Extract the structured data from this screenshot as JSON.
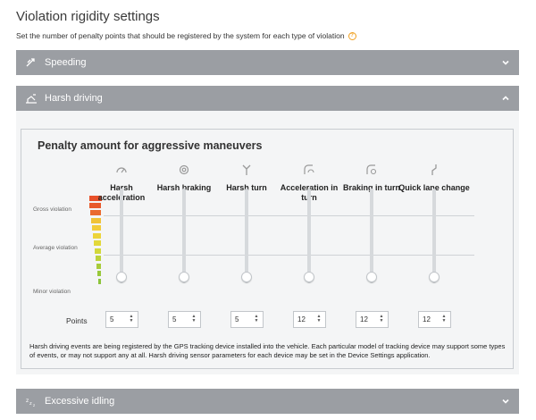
{
  "page": {
    "title": "Violation rigidity settings",
    "subtitle": "Set the number of penalty points that should be registered by the system for each type of violation"
  },
  "colors": {
    "header_bg": "#9b9ea3",
    "panel_bg": "#f4f5f6",
    "help": "#f0a020"
  },
  "sections": [
    {
      "label": "Speeding",
      "icon": "speed-icon",
      "expanded": false
    },
    {
      "label": "Harsh driving",
      "icon": "harsh-driving-icon",
      "expanded": true
    },
    {
      "label": "Excessive idling",
      "icon": "idling-icon",
      "expanded": false
    }
  ],
  "harsh": {
    "legend": "Penalty amount for aggressive maneuvers",
    "scale": {
      "gross": "Gross violation",
      "average": "Average violation",
      "minor": "Minor violation"
    },
    "points_label": "Points",
    "columns": [
      {
        "title": "Harsh acceleration",
        "points": "5",
        "icon": "acceleration-icon"
      },
      {
        "title": "Harsh braking",
        "points": "5",
        "icon": "braking-icon"
      },
      {
        "title": "Harsh turn",
        "points": "5",
        "icon": "turn-icon"
      },
      {
        "title": "Acceleration in turn",
        "points": "12",
        "icon": "acceleration-turn-icon"
      },
      {
        "title": "Braking in turn",
        "points": "12",
        "icon": "braking-turn-icon"
      },
      {
        "title": "Quick lane change",
        "points": "12",
        "icon": "lane-change-icon"
      }
    ],
    "note": "Harsh driving events are being registered by the GPS tracking device installed into the vehicle. Each particular model of tracking device may support some types of events, or may not support any at all. Harsh driving sensor parameters for each device may be set in the Device Settings application."
  }
}
